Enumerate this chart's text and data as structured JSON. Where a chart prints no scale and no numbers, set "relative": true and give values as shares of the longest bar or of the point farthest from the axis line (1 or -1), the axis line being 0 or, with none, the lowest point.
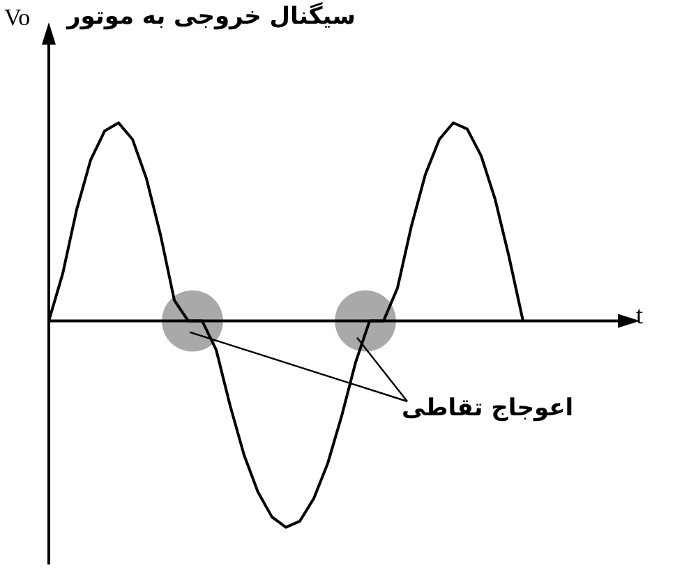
{
  "chart_data": {
    "type": "line",
    "title": "سیگنال خروجی به موتور",
    "xlabel": "t",
    "ylabel": "Vo",
    "relative": true,
    "color": "#000000",
    "marker": "none",
    "line_style": "solid",
    "legend": false,
    "categories": [
      null,
      null,
      null,
      null,
      null,
      null,
      null,
      null,
      null,
      null,
      null,
      null,
      null,
      null,
      null,
      null,
      null,
      null,
      null,
      null,
      null,
      null,
      null,
      null,
      null,
      null,
      null,
      null,
      null,
      null,
      null,
      null,
      null,
      null,
      null,
      null,
      null,
      null,
      null,
      null,
      null,
      null
    ],
    "values": [
      0,
      0.23,
      0.54,
      0.78,
      0.92,
      0.96,
      0.88,
      0.69,
      0.42,
      0.1,
      0,
      0,
      -0.14,
      -0.41,
      -0.65,
      -0.83,
      -0.95,
      -1,
      -0.97,
      -0.86,
      -0.69,
      -0.46,
      -0.2,
      0,
      0,
      0.16,
      0.46,
      0.71,
      0.88,
      0.96,
      0.93,
      0.8,
      0.59,
      0.31,
      0,
      null,
      null,
      null,
      null,
      null,
      null,
      null
    ],
    "annotations": [
      "اعوجاج تقاطی"
    ]
  }
}
